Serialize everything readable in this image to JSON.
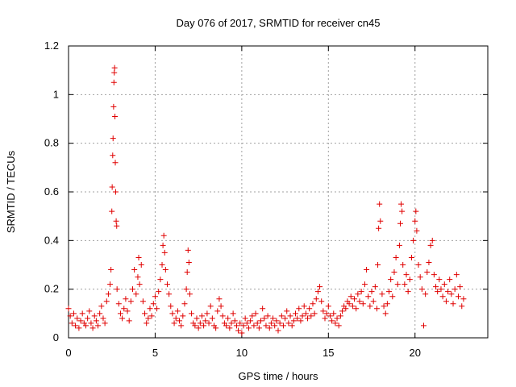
{
  "chart_data": {
    "type": "scatter",
    "title": "Day 076 of 2017, SRMTID for receiver cn45",
    "xlabel": "GPS time / hours",
    "ylabel": "SRMTID / TECUs",
    "xlim": [
      0,
      24.2
    ],
    "ylim": [
      0,
      1.2
    ],
    "x_ticks": [
      0,
      5,
      10,
      15,
      20
    ],
    "x_tick_labels": [
      "0",
      "5",
      "10",
      "15",
      "20"
    ],
    "y_ticks": [
      0,
      0.2,
      0.4,
      0.6,
      0.8,
      1.0,
      1.2
    ],
    "y_tick_labels": [
      "0",
      "0.2",
      "0.4",
      "0.6",
      "0.8",
      "1",
      "1.2"
    ],
    "grid": true,
    "marker": "+",
    "series": [
      {
        "name": "cn45",
        "color": "#e00000",
        "points": [
          [
            0.0,
            0.12
          ],
          [
            0.1,
            0.09
          ],
          [
            0.2,
            0.06
          ],
          [
            0.3,
            0.1
          ],
          [
            0.4,
            0.05
          ],
          [
            0.5,
            0.08
          ],
          [
            0.6,
            0.04
          ],
          [
            0.7,
            0.07
          ],
          [
            0.8,
            0.1
          ],
          [
            0.9,
            0.06
          ],
          [
            1.0,
            0.05
          ],
          [
            1.1,
            0.08
          ],
          [
            1.2,
            0.11
          ],
          [
            1.3,
            0.06
          ],
          [
            1.4,
            0.04
          ],
          [
            1.5,
            0.09
          ],
          [
            1.6,
            0.07
          ],
          [
            1.7,
            0.05
          ],
          [
            1.8,
            0.1
          ],
          [
            1.9,
            0.13
          ],
          [
            2.0,
            0.08
          ],
          [
            2.1,
            0.06
          ],
          [
            2.2,
            0.15
          ],
          [
            2.3,
            0.18
          ],
          [
            2.4,
            0.22
          ],
          [
            2.45,
            0.28
          ],
          [
            2.5,
            0.52
          ],
          [
            2.52,
            0.62
          ],
          [
            2.55,
            0.75
          ],
          [
            2.57,
            0.82
          ],
          [
            2.6,
            0.95
          ],
          [
            2.62,
            1.05
          ],
          [
            2.64,
            1.09
          ],
          [
            2.66,
            1.11
          ],
          [
            2.68,
            0.91
          ],
          [
            2.7,
            0.72
          ],
          [
            2.72,
            0.6
          ],
          [
            2.75,
            0.48
          ],
          [
            2.78,
            0.46
          ],
          [
            2.8,
            0.2
          ],
          [
            2.9,
            0.14
          ],
          [
            3.0,
            0.1
          ],
          [
            3.1,
            0.08
          ],
          [
            3.2,
            0.12
          ],
          [
            3.3,
            0.16
          ],
          [
            3.4,
            0.11
          ],
          [
            3.5,
            0.07
          ],
          [
            3.6,
            0.15
          ],
          [
            3.7,
            0.2
          ],
          [
            3.8,
            0.28
          ],
          [
            3.9,
            0.18
          ],
          [
            4.0,
            0.25
          ],
          [
            4.05,
            0.33
          ],
          [
            4.1,
            0.22
          ],
          [
            4.2,
            0.3
          ],
          [
            4.3,
            0.15
          ],
          [
            4.4,
            0.1
          ],
          [
            4.5,
            0.06
          ],
          [
            4.6,
            0.08
          ],
          [
            4.7,
            0.12
          ],
          [
            4.8,
            0.09
          ],
          [
            4.9,
            0.14
          ],
          [
            5.0,
            0.17
          ],
          [
            5.1,
            0.12
          ],
          [
            5.2,
            0.19
          ],
          [
            5.3,
            0.24
          ],
          [
            5.4,
            0.3
          ],
          [
            5.45,
            0.38
          ],
          [
            5.5,
            0.42
          ],
          [
            5.55,
            0.35
          ],
          [
            5.6,
            0.28
          ],
          [
            5.7,
            0.22
          ],
          [
            5.8,
            0.18
          ],
          [
            5.9,
            0.13
          ],
          [
            6.0,
            0.1
          ],
          [
            6.1,
            0.06
          ],
          [
            6.2,
            0.08
          ],
          [
            6.3,
            0.11
          ],
          [
            6.4,
            0.07
          ],
          [
            6.5,
            0.05
          ],
          [
            6.6,
            0.09
          ],
          [
            6.7,
            0.14
          ],
          [
            6.8,
            0.2
          ],
          [
            6.85,
            0.27
          ],
          [
            6.9,
            0.36
          ],
          [
            6.95,
            0.31
          ],
          [
            7.0,
            0.18
          ],
          [
            7.1,
            0.1
          ],
          [
            7.2,
            0.06
          ],
          [
            7.3,
            0.05
          ],
          [
            7.4,
            0.08
          ],
          [
            7.5,
            0.04
          ],
          [
            7.6,
            0.06
          ],
          [
            7.7,
            0.09
          ],
          [
            7.8,
            0.05
          ],
          [
            7.9,
            0.07
          ],
          [
            8.0,
            0.1
          ],
          [
            8.1,
            0.06
          ],
          [
            8.2,
            0.13
          ],
          [
            8.3,
            0.08
          ],
          [
            8.4,
            0.05
          ],
          [
            8.5,
            0.04
          ],
          [
            8.6,
            0.11
          ],
          [
            8.7,
            0.16
          ],
          [
            8.8,
            0.13
          ],
          [
            8.9,
            0.09
          ],
          [
            9.0,
            0.06
          ],
          [
            9.1,
            0.05
          ],
          [
            9.2,
            0.08
          ],
          [
            9.3,
            0.04
          ],
          [
            9.4,
            0.06
          ],
          [
            9.5,
            0.1
          ],
          [
            9.6,
            0.07
          ],
          [
            9.7,
            0.05
          ],
          [
            9.8,
            0.03
          ],
          [
            9.9,
            0.06
          ],
          [
            10.0,
            0.02
          ],
          [
            10.1,
            0.05
          ],
          [
            10.2,
            0.08
          ],
          [
            10.3,
            0.06
          ],
          [
            10.4,
            0.04
          ],
          [
            10.5,
            0.07
          ],
          [
            10.6,
            0.09
          ],
          [
            10.7,
            0.05
          ],
          [
            10.8,
            0.1
          ],
          [
            10.9,
            0.06
          ],
          [
            11.0,
            0.04
          ],
          [
            11.1,
            0.07
          ],
          [
            11.2,
            0.12
          ],
          [
            11.3,
            0.08
          ],
          [
            11.4,
            0.05
          ],
          [
            11.5,
            0.09
          ],
          [
            11.6,
            0.04
          ],
          [
            11.7,
            0.06
          ],
          [
            11.8,
            0.08
          ],
          [
            11.9,
            0.05
          ],
          [
            12.0,
            0.07
          ],
          [
            12.1,
            0.03
          ],
          [
            12.2,
            0.06
          ],
          [
            12.3,
            0.09
          ],
          [
            12.4,
            0.05
          ],
          [
            12.5,
            0.08
          ],
          [
            12.6,
            0.11
          ],
          [
            12.7,
            0.06
          ],
          [
            12.8,
            0.09
          ],
          [
            12.9,
            0.05
          ],
          [
            13.0,
            0.07
          ],
          [
            13.1,
            0.1
          ],
          [
            13.2,
            0.08
          ],
          [
            13.3,
            0.12
          ],
          [
            13.4,
            0.07
          ],
          [
            13.5,
            0.09
          ],
          [
            13.6,
            0.13
          ],
          [
            13.7,
            0.1
          ],
          [
            13.8,
            0.08
          ],
          [
            13.9,
            0.12
          ],
          [
            14.0,
            0.09
          ],
          [
            14.1,
            0.14
          ],
          [
            14.2,
            0.1
          ],
          [
            14.3,
            0.16
          ],
          [
            14.4,
            0.19
          ],
          [
            14.5,
            0.21
          ],
          [
            14.6,
            0.15
          ],
          [
            14.7,
            0.11
          ],
          [
            14.8,
            0.08
          ],
          [
            14.9,
            0.1
          ],
          [
            15.0,
            0.13
          ],
          [
            15.1,
            0.09
          ],
          [
            15.2,
            0.07
          ],
          [
            15.3,
            0.1
          ],
          [
            15.4,
            0.06
          ],
          [
            15.5,
            0.08
          ],
          [
            15.6,
            0.05
          ],
          [
            15.7,
            0.09
          ],
          [
            15.8,
            0.11
          ],
          [
            15.9,
            0.13
          ],
          [
            16.0,
            0.12
          ],
          [
            16.1,
            0.15
          ],
          [
            16.2,
            0.14
          ],
          [
            16.3,
            0.17
          ],
          [
            16.4,
            0.13
          ],
          [
            16.5,
            0.16
          ],
          [
            16.6,
            0.12
          ],
          [
            16.7,
            0.18
          ],
          [
            16.8,
            0.15
          ],
          [
            16.9,
            0.19
          ],
          [
            17.0,
            0.14
          ],
          [
            17.1,
            0.22
          ],
          [
            17.2,
            0.28
          ],
          [
            17.3,
            0.17
          ],
          [
            17.4,
            0.13
          ],
          [
            17.5,
            0.19
          ],
          [
            17.6,
            0.15
          ],
          [
            17.7,
            0.21
          ],
          [
            17.8,
            0.12
          ],
          [
            17.85,
            0.3
          ],
          [
            17.9,
            0.45
          ],
          [
            17.95,
            0.55
          ],
          [
            18.0,
            0.48
          ],
          [
            18.1,
            0.18
          ],
          [
            18.2,
            0.13
          ],
          [
            18.3,
            0.1
          ],
          [
            18.4,
            0.14
          ],
          [
            18.5,
            0.19
          ],
          [
            18.6,
            0.24
          ],
          [
            18.7,
            0.17
          ],
          [
            18.8,
            0.27
          ],
          [
            18.9,
            0.33
          ],
          [
            19.0,
            0.22
          ],
          [
            19.1,
            0.38
          ],
          [
            19.15,
            0.47
          ],
          [
            19.2,
            0.55
          ],
          [
            19.25,
            0.52
          ],
          [
            19.3,
            0.3
          ],
          [
            19.4,
            0.22
          ],
          [
            19.5,
            0.26
          ],
          [
            19.6,
            0.19
          ],
          [
            19.7,
            0.24
          ],
          [
            19.8,
            0.33
          ],
          [
            19.9,
            0.4
          ],
          [
            20.0,
            0.48
          ],
          [
            20.05,
            0.52
          ],
          [
            20.1,
            0.44
          ],
          [
            20.2,
            0.3
          ],
          [
            20.3,
            0.25
          ],
          [
            20.4,
            0.2
          ],
          [
            20.5,
            0.05
          ],
          [
            20.6,
            0.18
          ],
          [
            20.7,
            0.27
          ],
          [
            20.8,
            0.31
          ],
          [
            20.9,
            0.38
          ],
          [
            21.0,
            0.4
          ],
          [
            21.1,
            0.26
          ],
          [
            21.2,
            0.21
          ],
          [
            21.3,
            0.19
          ],
          [
            21.4,
            0.24
          ],
          [
            21.5,
            0.2
          ],
          [
            21.6,
            0.17
          ],
          [
            21.7,
            0.22
          ],
          [
            21.8,
            0.15
          ],
          [
            21.9,
            0.19
          ],
          [
            22.0,
            0.24
          ],
          [
            22.1,
            0.18
          ],
          [
            22.2,
            0.14
          ],
          [
            22.3,
            0.2
          ],
          [
            22.4,
            0.26
          ],
          [
            22.5,
            0.17
          ],
          [
            22.6,
            0.21
          ],
          [
            22.7,
            0.13
          ],
          [
            22.8,
            0.16
          ]
        ]
      }
    ]
  }
}
